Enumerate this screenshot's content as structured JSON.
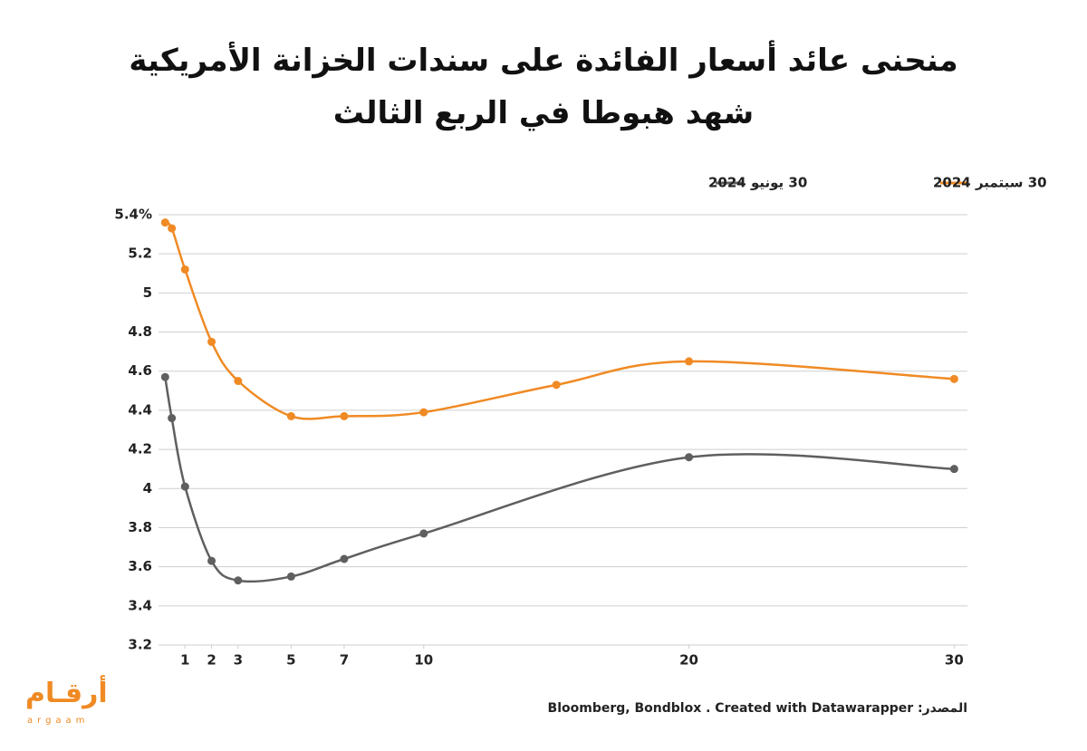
{
  "chart_data": {
    "type": "line",
    "title": "منحنى عائد أسعار الفائدة على سندات الخزانة الأمريكية شهد هبوطا في الربع الثالث",
    "source": "المصدر: Bloomberg, Bondblox . Created with Datawarapper",
    "logo": "أرقـام",
    "logo_sub": "argaam",
    "legend": "top-right",
    "xlim": [
      0,
      30.5
    ],
    "xticks": [
      1,
      2,
      3,
      5,
      7,
      10,
      20,
      30
    ],
    "ylim": [
      3.2,
      5.4
    ],
    "yticks": [
      3.2,
      3.4,
      3.6,
      3.8,
      4.0,
      4.2,
      4.4,
      4.6,
      4.8,
      5.0,
      5.2,
      {
        "value": 5.4,
        "label": "5.4%"
      }
    ],
    "grid": true,
    "series": [
      {
        "name": "30 سبتمبر 2024",
        "color": "#f08a24",
        "x": [
          0.25,
          0.5,
          1,
          2,
          3,
          5,
          7,
          10,
          15,
          20,
          30
        ],
        "values": [
          5.36,
          5.33,
          5.12,
          4.75,
          4.55,
          4.37,
          4.37,
          4.39,
          4.53,
          4.65,
          4.56
        ]
      },
      {
        "name": "30 يونيو 2024",
        "color": "#5f5f5f",
        "x": [
          0.25,
          0.5,
          1,
          2,
          3,
          5,
          7,
          10,
          20,
          30
        ],
        "values": [
          4.57,
          4.36,
          4.01,
          3.63,
          3.53,
          3.55,
          3.64,
          3.77,
          4.16,
          4.1
        ]
      }
    ]
  }
}
